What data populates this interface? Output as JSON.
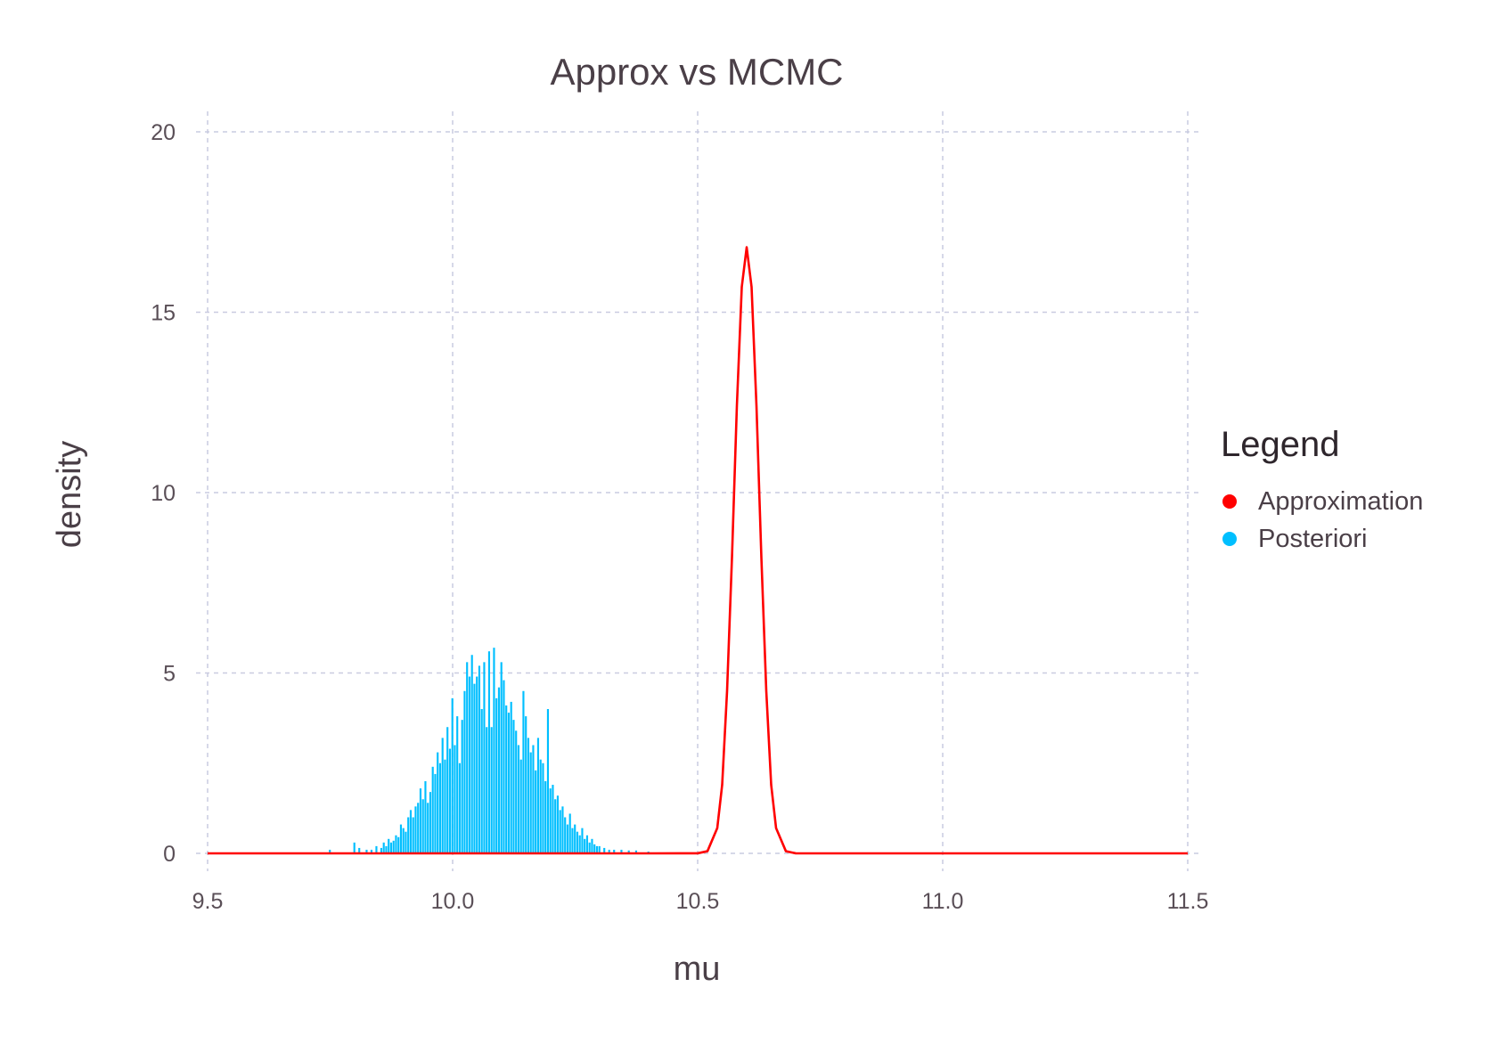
{
  "chart_data": {
    "type": "histogram+line",
    "title": "Approx vs MCMC",
    "xlabel": "mu",
    "ylabel": "density",
    "xlim": [
      9.5,
      11.5
    ],
    "ylim": [
      0,
      20
    ],
    "x_ticks": [
      "9.5",
      "10.0",
      "10.5",
      "11.0",
      "11.5"
    ],
    "y_ticks": [
      "0",
      "5",
      "10",
      "15",
      "20"
    ],
    "grid": "dashed, both axes",
    "legend": {
      "title": "Legend",
      "placement": "right",
      "entries": [
        {
          "label": "Approximation",
          "color": "#ff0000"
        },
        {
          "label": "Posteriori",
          "color": "#00bfff"
        }
      ]
    },
    "series": [
      {
        "name": "Approximation",
        "type": "line",
        "color": "#ff0000",
        "x": [
          9.5,
          10.4,
          10.5,
          10.52,
          10.54,
          10.55,
          10.56,
          10.57,
          10.58,
          10.59,
          10.6,
          10.61,
          10.62,
          10.63,
          10.64,
          10.65,
          10.66,
          10.68,
          10.7,
          10.8,
          11.5
        ],
        "y": [
          0,
          0,
          0.002,
          0.06,
          0.7,
          1.9,
          4.5,
          8.2,
          12.4,
          15.7,
          16.8,
          15.7,
          12.4,
          8.2,
          4.5,
          1.9,
          0.7,
          0.06,
          0.002,
          0,
          0
        ]
      },
      {
        "name": "Posteriori",
        "type": "histogram",
        "color": "#00bfff",
        "bin_width": 0.005,
        "x": [
          9.75,
          9.8,
          9.81,
          9.825,
          9.835,
          9.845,
          9.855,
          9.86,
          9.865,
          9.87,
          9.875,
          9.88,
          9.885,
          9.89,
          9.895,
          9.9,
          9.905,
          9.91,
          9.915,
          9.92,
          9.925,
          9.93,
          9.935,
          9.94,
          9.945,
          9.95,
          9.955,
          9.96,
          9.965,
          9.97,
          9.975,
          9.98,
          9.985,
          9.99,
          9.995,
          10.0,
          10.005,
          10.01,
          10.015,
          10.02,
          10.025,
          10.03,
          10.035,
          10.04,
          10.045,
          10.05,
          10.055,
          10.06,
          10.065,
          10.07,
          10.075,
          10.08,
          10.085,
          10.09,
          10.095,
          10.1,
          10.105,
          10.11,
          10.115,
          10.12,
          10.125,
          10.13,
          10.135,
          10.14,
          10.145,
          10.15,
          10.155,
          10.16,
          10.165,
          10.17,
          10.175,
          10.18,
          10.185,
          10.19,
          10.195,
          10.2,
          10.205,
          10.21,
          10.215,
          10.22,
          10.225,
          10.23,
          10.235,
          10.24,
          10.245,
          10.25,
          10.255,
          10.26,
          10.265,
          10.27,
          10.275,
          10.28,
          10.285,
          10.29,
          10.295,
          10.3,
          10.31,
          10.32,
          10.33,
          10.345,
          10.36,
          10.375,
          10.4
        ],
        "y": [
          0.1,
          0.3,
          0.15,
          0.1,
          0.1,
          0.2,
          0.15,
          0.3,
          0.2,
          0.4,
          0.3,
          0.35,
          0.5,
          0.45,
          0.8,
          0.7,
          0.6,
          1.0,
          1.2,
          1.0,
          1.3,
          1.4,
          1.8,
          1.5,
          2.0,
          1.4,
          1.7,
          2.4,
          2.2,
          2.8,
          2.5,
          3.2,
          2.6,
          3.5,
          2.9,
          4.3,
          3.0,
          3.8,
          2.5,
          3.7,
          4.5,
          5.3,
          4.9,
          5.5,
          4.7,
          4.9,
          5.2,
          4.0,
          5.3,
          3.5,
          5.6,
          3.5,
          5.7,
          4.3,
          4.6,
          5.3,
          4.8,
          4.1,
          3.9,
          4.2,
          3.7,
          3.4,
          3.0,
          2.6,
          4.5,
          3.8,
          3.2,
          2.8,
          3.0,
          2.3,
          3.2,
          2.6,
          2.5,
          2.0,
          4.0,
          1.8,
          1.9,
          1.5,
          1.6,
          1.2,
          1.3,
          1.0,
          0.8,
          1.1,
          0.7,
          0.8,
          0.6,
          0.5,
          0.7,
          0.4,
          0.5,
          0.3,
          0.4,
          0.25,
          0.2,
          0.2,
          0.15,
          0.1,
          0.1,
          0.1,
          0.08,
          0.08,
          0.05
        ]
      }
    ]
  }
}
